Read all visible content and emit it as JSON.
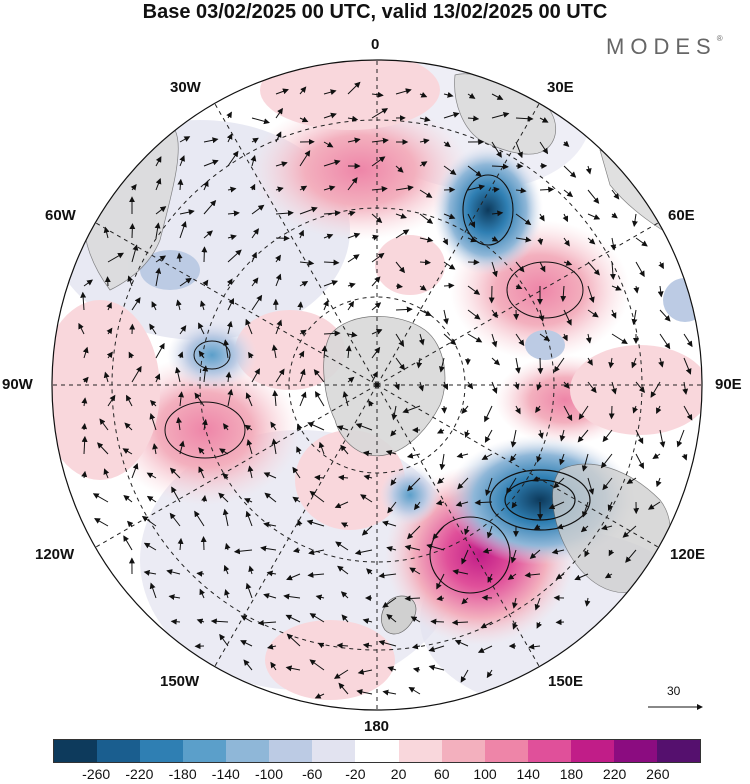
{
  "title": "Base 03/02/2025 00 UTC, valid 13/02/2025 00 UTC",
  "brand": "MODES",
  "brand_mark": "®",
  "longitude_labels": {
    "lon_0": "0",
    "lon_30e": "30E",
    "lon_60e": "60E",
    "lon_90e": "90E",
    "lon_120e": "120E",
    "lon_150e": "150E",
    "lon_180": "180",
    "lon_150w": "150W",
    "lon_120w": "120W",
    "lon_90w": "90W",
    "lon_60w": "60W",
    "lon_30w": "30W"
  },
  "vector_scale_label": "30",
  "colorbar": {
    "colors": [
      "#0d3a5c",
      "#1a5e8f",
      "#2f7fb3",
      "#5b9fca",
      "#8fb7d8",
      "#bccbe4",
      "#e2e3f0",
      "#ffffff",
      "#f9d7dc",
      "#f3b0be",
      "#ee85a8",
      "#e0509a",
      "#c11d88",
      "#8b0c80",
      "#55106e"
    ],
    "tick_labels": [
      "-260",
      "-220",
      "-180",
      "-140",
      "-100",
      "-60",
      "-20",
      "20",
      "60",
      "100",
      "140",
      "180",
      "220",
      "260"
    ]
  }
}
